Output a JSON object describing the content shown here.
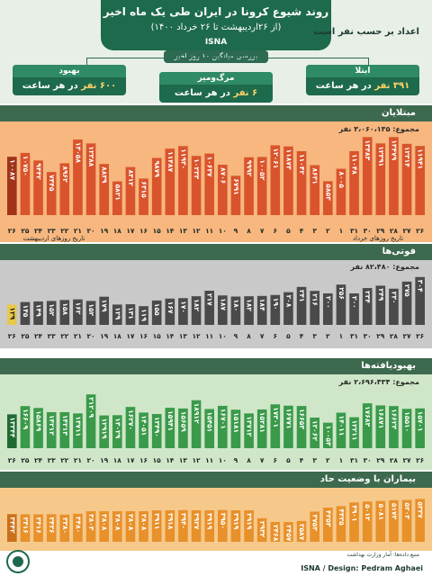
{
  "header": {
    "title": "روند شیوع کرونا در ایران طی یک ماه اخیر",
    "subtitle": "(از ۲۶اردیبهشت تا ۲۶ خرداد ۱۴۰۰)",
    "agency": "ISNA",
    "stats_label": "اعداد بر حسب نفر است",
    "avg_label": "بررسی میانگین ۱۰ روز اخیر"
  },
  "averages": [
    {
      "label": "ابتلا",
      "value": "۳۹۱ نفر",
      "unit": "در هر ساعت"
    },
    {
      "label": "مرگ‌ومیر",
      "value": "۶ نفر",
      "unit": "در هر ساعت"
    },
    {
      "label": "بهبود",
      "value": "۶۰۰ نفر",
      "unit": "در هر ساعت"
    }
  ],
  "day_labels": [
    "۲۶",
    "۲۷",
    "۲۸",
    "۲۹",
    "۳۰",
    "۳۱",
    "۱",
    "۲",
    "۳",
    "۴",
    "۵",
    "۶",
    "۷",
    "۸",
    "۹",
    "۱۰",
    "۱۱",
    "۱۲",
    "۱۳",
    "۱۴",
    "۱۵",
    "۱۶",
    "۱۷",
    "۱۸",
    "۱۹",
    "۲۰",
    "۲۱",
    "۲۲",
    "۲۳",
    "۲۴",
    "۲۵",
    "۲۶"
  ],
  "month_labels": {
    "ordibehesht": "تاریخ روزهای اردیبهشت",
    "khordad": "تاریخ روزهای خرداد"
  },
  "chart_data": [
    {
      "type": "bar",
      "title": "مبتلایان",
      "total_label": "مجموع: ۳،۰۶۰،۱۳۵ نفر",
      "color": "#d9542c",
      "highlight_color": "#a0341a",
      "categories": [
        "۲۶",
        "۲۷",
        "۲۸",
        "۲۹",
        "۳۰",
        "۳۱",
        "۱",
        "۲",
        "۳",
        "۴",
        "۵",
        "۶",
        "۷",
        "۸",
        "۹",
        "۱۰",
        "۱۱",
        "۱۲",
        "۱۳",
        "۱۴",
        "۱۵",
        "۱۶",
        "۱۷",
        "۱۸",
        "۱۹",
        "۲۰",
        "۲۱",
        "۲۲",
        "۲۳",
        "۲۴",
        "۲۵",
        "۲۶"
      ],
      "values": [
        11941,
        12314,
        13479,
        12391,
        13483,
        11048,
        8005,
        5853,
        8631,
        11042,
        11873,
        12061,
        10052,
        9992,
        6791,
        8706,
        10637,
        10233,
        11930,
        11487,
        9879,
        6315,
        8312,
        5821,
        8839,
        12388,
        13058,
        8962,
        7445,
        9442,
        10750,
        10087
      ],
      "labels": [
        "۱۱۹۴۱",
        "۱۲۳۱۴",
        "۱۳۴۷۹",
        "۱۲۳۹۱",
        "۱۳۴۸۳",
        "۱۱۰۴۸",
        "۸۰۰۵",
        "۵۸۵۳",
        "۸۶۳۱",
        "۱۱۰۴۲",
        "۱۱۸۷۳",
        "۱۲۰۶۱",
        "۱۰۰۵۲",
        "۹۹۹۲",
        "۶۷۹۱",
        "۸۷۰۶",
        "۱۰۶۳۷",
        "۱۰۲۳۳",
        "۱۱۹۳۰",
        "۱۱۴۸۷",
        "۹۸۷۹",
        "۶۳۱۵",
        "۸۳۱۲",
        "۵۸۲۱",
        "۸۸۳۹",
        "۱۲۳۸۸",
        "۱۳۰۵۸",
        "۸۹۶۲",
        "۷۴۴۵",
        "۹۴۴۲",
        "۱۰۷۵۰",
        "۱۰۰۸۷"
      ],
      "ylim": [
        0,
        14000
      ]
    },
    {
      "type": "bar",
      "title": "فوتی‌ها",
      "total_label": "مجموع: ۸۲،۴۸۰ نفر",
      "color": "#4a4a4a",
      "highlight_color": "#e8c84a",
      "categories": [
        "۲۶",
        "۲۷",
        "۲۸",
        "۲۹",
        "۳۰",
        "۳۱",
        "۱",
        "۲",
        "۳",
        "۴",
        "۵",
        "۶",
        "۷",
        "۸",
        "۹",
        "۱۰",
        "۱۱",
        "۱۲",
        "۱۳",
        "۱۴",
        "۱۵",
        "۱۶",
        "۱۷",
        "۱۸",
        "۱۹",
        "۲۰",
        "۲۱",
        "۲۲",
        "۲۳",
        "۲۴",
        "۲۵",
        "۲۶"
      ],
      "values": [
        304,
        275,
        230,
        249,
        234,
        200,
        256,
        200,
        216,
        241,
        208,
        190,
        184,
        182,
        180,
        187,
        217,
        182,
        170,
        167,
        155,
        119,
        131,
        129,
        179,
        152,
        162,
        158,
        152,
        149,
        145,
        129
      ],
      "labels": [
        "۳۰۴",
        "۲۷۵",
        "۲۳۰",
        "۲۴۹",
        "۲۳۴",
        "۲۰۰",
        "۲۵۶",
        "۲۰۰",
        "۲۱۶",
        "۲۴۱",
        "۲۰۸",
        "۱۹۰",
        "۱۸۴",
        "۱۸۲",
        "۱۸۰",
        "۱۸۷",
        "۲۱۷",
        "۱۸۲",
        "۱۷۰",
        "۱۶۷",
        "۱۵۵",
        "۱۱۹",
        "۱۳۱",
        "۱۲۹",
        "۱۷۹",
        "۱۵۲",
        "۱۶۲",
        "۱۵۸",
        "۱۵۲",
        "۱۴۹",
        "۱۴۵",
        "۱۲۹"
      ],
      "ylim": [
        0,
        320
      ]
    },
    {
      "type": "bar",
      "title": "بهبودیافته‌ها",
      "total_label": "مجموع: ۲،۶۹۶،۴۳۴ نفر",
      "color": "#3a9a4a",
      "highlight_color": "#1f6a30",
      "categories": [
        "۲۶",
        "۲۷",
        "۲۸",
        "۲۹",
        "۳۰",
        "۳۱",
        "۱",
        "۲",
        "۳",
        "۴",
        "۵",
        "۶",
        "۷",
        "۸",
        "۹",
        "۱۰",
        "۱۱",
        "۱۲",
        "۱۳",
        "۱۴",
        "۱۵",
        "۱۶",
        "۱۷",
        "۱۸",
        "۱۹",
        "۲۰",
        "۲۱",
        "۲۲",
        "۲۳",
        "۲۴",
        "۲۵",
        "۲۶"
      ],
      "values": [
        15701,
        15510,
        16623,
        16871,
        17683,
        12211,
        14011,
        10053,
        12062,
        16653,
        16771,
        17301,
        15281,
        13712,
        15181,
        16701,
        15451,
        18912,
        15659,
        15941,
        13490,
        14051,
        16270,
        13029,
        12919,
        21209,
        13711,
        14213,
        14212,
        15869,
        16609,
        13344
      ],
      "labels": [
        "۱۵۷۰۱",
        "۱۵۵۱۰",
        "۱۶۶۲۳",
        "۱۶۸۷۱",
        "۱۷۶۸۳",
        "۱۲۲۱۱",
        "۱۴۰۱۱",
        "۱۰۰۵۳",
        "۱۲۰۶۲",
        "۱۶۶۵۳",
        "۱۶۷۷۱",
        "۱۷۳۰۱",
        "۱۵۲۸۱",
        "۱۳۷۱۲",
        "۱۵۱۸۱",
        "۱۶۷۰۱",
        "۱۵۴۵۱",
        "۱۸۹۱۲",
        "۱۵۶۵۹",
        "۱۵۹۴۱",
        "۱۳۴۹۰",
        "۱۴۰۵۱",
        "۱۶۲۷۰",
        "۱۳۰۲۹",
        "۱۲۹۱۹",
        "۲۱۲۰۹",
        "۱۳۷۱۱",
        "۱۴۲۱۳",
        "۱۴۲۱۲",
        "۱۵۸۶۹",
        "۱۶۶۰۹",
        "۱۳۳۴۴"
      ],
      "ylim": [
        0,
        22000
      ]
    },
    {
      "type": "bar",
      "title": "بیماران با وضعیت حاد",
      "total_label": "",
      "color": "#e8902a",
      "highlight_color": "#c9701a",
      "categories": [
        "۲۶",
        "۲۷",
        "۲۸",
        "۲۹",
        "۳۰",
        "۳۱",
        "۱",
        "۲",
        "۳",
        "۴",
        "۵",
        "۶",
        "۷",
        "۸",
        "۹",
        "۱۰",
        "۱۱",
        "۱۲",
        "۱۳",
        "۱۴",
        "۱۵",
        "۱۶",
        "۱۷",
        "۱۸",
        "۱۹",
        "۲۰",
        "۲۱",
        "۲۲",
        "۲۳",
        "۲۴",
        "۲۵",
        "۲۶"
      ],
      "values": [
        5337,
        5203,
        5173,
        5081,
        5012,
        4901,
        4435,
        4253,
        3753,
        2587,
        2457,
        2468,
        2932,
        3919,
        3919,
        3950,
        3919,
        3927,
        3940,
        3918,
        3911,
        3808,
        3808,
        3808,
        3808,
        3803,
        3480,
        3380,
        3436,
        3416,
        3416,
        3442
      ],
      "labels": [
        "۵۳۳۷",
        "۵۲۰۳",
        "۵۱۷۳",
        "۵۰۸۱",
        "۵۰۱۲",
        "۴۹۰۱",
        "۴۴۳۵",
        "۴۲۵۳",
        "۳۷۵۳",
        "۲۵۸۷",
        "۲۴۵۷",
        "۲۴۶۸",
        "۲۹۳۲",
        "۳۹۱۹",
        "۳۹۱۹",
        "۳۹۵۰",
        "۳۹۱۹",
        "۳۹۲۷",
        "۳۹۴۰",
        "۳۹۱۸",
        "۳۹۱۱",
        "۳۸۰۸",
        "۳۸۰۸",
        "۳۸۰۸",
        "۳۸۰۸",
        "۳۸۰۳",
        "۳۴۸۰",
        "۳۳۸۰",
        "۳۴۳۶",
        "۳۴۱۶",
        "۳۴۱۶",
        "۳۴۴۲"
      ],
      "ylim": [
        0,
        5600
      ]
    }
  ],
  "footer": {
    "credit": "ISNA / Design: Pedram Aghaei",
    "source": "منبع داده‌ها: آمار وزارت بهداشت"
  }
}
